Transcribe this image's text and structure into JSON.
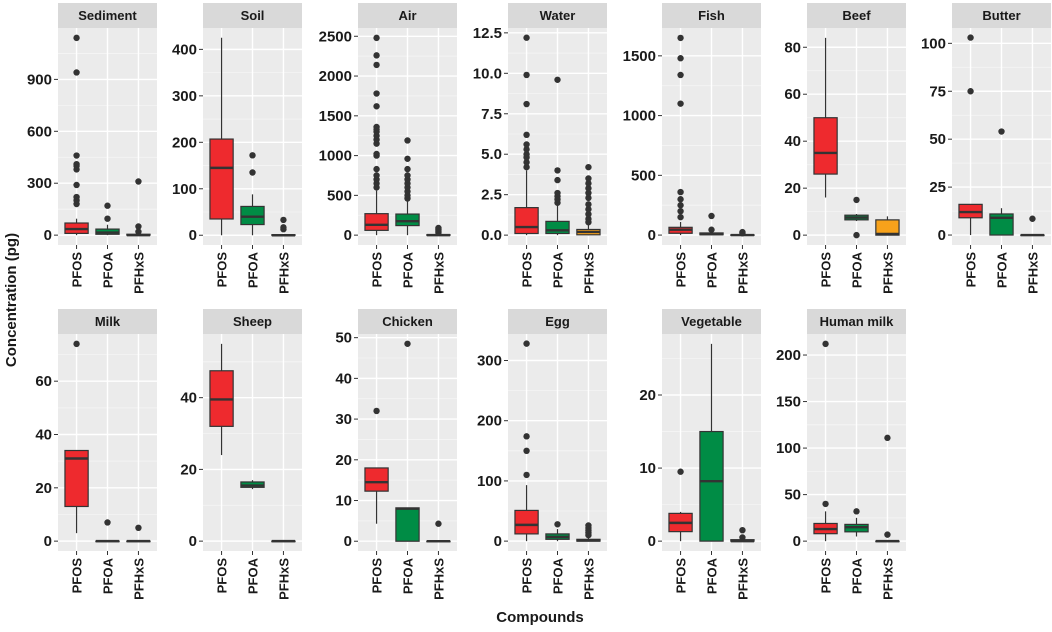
{
  "chart_data": {
    "type": "boxplot",
    "xlabel": "Compounds",
    "ylabel": "Concentration (pg)",
    "categories": [
      "PFOS",
      "PFOA",
      "PFHxS"
    ],
    "colors": {
      "PFOS": "#ee2a2e",
      "PFOA": "#008c45",
      "PFHxS": "#f7a21b"
    },
    "grid": true,
    "facets": [
      {
        "title": "Sediment",
        "ylim": [
          -57,
          1197
        ],
        "ticks": [
          0,
          300,
          600,
          900
        ],
        "tick_labels": [
          "0",
          "300",
          "600",
          "900"
        ],
        "boxes": [
          {
            "min": 0,
            "q1": 10,
            "median": 35,
            "q3": 70,
            "max": 95,
            "outliers": [
              180,
              200,
              220,
              290,
              380,
              400,
              410,
              460,
              940,
              1140
            ]
          },
          {
            "min": 0,
            "q1": 5,
            "median": 15,
            "q3": 35,
            "max": 60,
            "outliers": [
              95,
              170
            ]
          },
          {
            "min": 0,
            "q1": 0,
            "median": 0,
            "q3": 5,
            "max": 10,
            "outliers": [
              20,
              50,
              310
            ]
          }
        ]
      },
      {
        "title": "Soil",
        "ylim": [
          -21,
          446
        ],
        "ticks": [
          0,
          100,
          200,
          300,
          400
        ],
        "tick_labels": [
          "0",
          "100",
          "200",
          "300",
          "400"
        ],
        "boxes": [
          {
            "min": 0,
            "q1": 35,
            "median": 145,
            "q3": 207,
            "max": 425,
            "outliers": []
          },
          {
            "min": 0,
            "q1": 23,
            "median": 40,
            "q3": 62,
            "max": 88,
            "outliers": [
              135,
              172
            ]
          },
          {
            "min": 0,
            "q1": 0,
            "median": 0,
            "q3": 1,
            "max": 2,
            "outliers": [
              13,
              17,
              33
            ]
          }
        ]
      },
      {
        "title": "Air",
        "ylim": [
          -124,
          2604
        ],
        "ticks": [
          0,
          500,
          1000,
          1500,
          2000,
          2500
        ],
        "tick_labels": [
          "0",
          "500",
          "1000",
          "1500",
          "2000",
          "2500"
        ],
        "boxes": [
          {
            "min": 0,
            "q1": 60,
            "median": 130,
            "q3": 270,
            "max": 560,
            "outliers": [
              600,
              650,
              700,
              750,
              830,
              1000,
              1020,
              1150,
              1200,
              1250,
              1300,
              1330,
              1360,
              1620,
              1780,
              2140,
              2260,
              2480
            ]
          },
          {
            "min": 0,
            "q1": 120,
            "median": 175,
            "q3": 265,
            "max": 430,
            "outliers": [
              460,
              500,
              550,
              600,
              650,
              700,
              750,
              830,
              960,
              1190
            ]
          },
          {
            "min": 0,
            "q1": 0,
            "median": 0,
            "q3": 5,
            "max": 10,
            "outliers": [
              30,
              50,
              70,
              90
            ]
          }
        ]
      },
      {
        "title": "Water",
        "ylim": [
          -0.61,
          12.8
        ],
        "ticks": [
          0,
          2.5,
          5,
          7.5,
          10,
          12.5
        ],
        "tick_labels": [
          "0.0",
          "2.5",
          "5.0",
          "7.5",
          "10.0",
          "12.5"
        ],
        "boxes": [
          {
            "min": 0,
            "q1": 0.1,
            "median": 0.5,
            "q3": 1.7,
            "max": 4.0,
            "outliers": [
              4.2,
              4.5,
              4.8,
              5.0,
              5.3,
              5.6,
              6.2,
              8.1,
              9.9,
              12.2
            ]
          },
          {
            "min": 0,
            "q1": 0.1,
            "median": 0.3,
            "q3": 0.85,
            "max": 1.9,
            "outliers": [
              2.0,
              2.2,
              2.4,
              2.6,
              3.4,
              4.0,
              9.6
            ]
          },
          {
            "min": 0,
            "q1": 0.02,
            "median": 0.2,
            "q3": 0.35,
            "max": 0.7,
            "outliers": [
              0.8,
              1.0,
              1.3,
              1.6,
              1.9,
              2.3,
              2.6,
              2.9,
              3.2,
              3.5,
              4.2
            ]
          }
        ]
      },
      {
        "title": "Fish",
        "ylim": [
          -83,
          1733
        ],
        "ticks": [
          0,
          500,
          1000,
          1500
        ],
        "tick_labels": [
          "0",
          "500",
          "1000",
          "1500"
        ],
        "boxes": [
          {
            "min": 0,
            "q1": 15,
            "median": 45,
            "q3": 65,
            "max": 110,
            "outliers": [
              150,
              200,
              250,
              300,
              360,
              1100,
              1340,
              1480,
              1650
            ]
          },
          {
            "min": 0,
            "q1": 3,
            "median": 8,
            "q3": 18,
            "max": 30,
            "outliers": [
              45,
              160
            ]
          },
          {
            "min": 0,
            "q1": 0,
            "median": 0,
            "q3": 2,
            "max": 5,
            "outliers": [
              15,
              25
            ]
          }
        ]
      },
      {
        "title": "Beef",
        "ylim": [
          -4.2,
          88.2
        ],
        "ticks": [
          0,
          20,
          40,
          60,
          80
        ],
        "tick_labels": [
          "0",
          "20",
          "40",
          "60",
          "80"
        ],
        "boxes": [
          {
            "min": 16,
            "q1": 26,
            "median": 35,
            "q3": 50,
            "max": 84,
            "outliers": []
          },
          {
            "min": 6,
            "q1": 6.5,
            "median": 7.5,
            "q3": 8.5,
            "max": 9,
            "outliers": [
              0,
              15
            ]
          },
          {
            "min": 0,
            "q1": 0,
            "median": 0.5,
            "q3": 6.5,
            "max": 8,
            "outliers": []
          }
        ]
      },
      {
        "title": "Butter",
        "ylim": [
          -5.2,
          108
        ],
        "ticks": [
          0,
          25,
          50,
          75,
          100
        ],
        "tick_labels": [
          "0",
          "25",
          "50",
          "75",
          "100"
        ],
        "boxes": [
          {
            "min": 0,
            "q1": 9,
            "median": 12,
            "q3": 16,
            "max": 16,
            "outliers": [
              75,
              103
            ]
          },
          {
            "min": 0,
            "q1": 0,
            "median": 9,
            "q3": 11,
            "max": 14,
            "outliers": [
              54
            ]
          },
          {
            "min": 0,
            "q1": 0,
            "median": 0,
            "q3": 0,
            "max": 0,
            "outliers": [
              8.5
            ]
          }
        ]
      },
      {
        "title": "Milk",
        "ylim": [
          -3.7,
          77.7
        ],
        "ticks": [
          0,
          20,
          40,
          60
        ],
        "tick_labels": [
          "0",
          "20",
          "40",
          "60"
        ],
        "boxes": [
          {
            "min": 3,
            "q1": 13,
            "median": 31,
            "q3": 34,
            "max": 34,
            "outliers": [
              74
            ]
          },
          {
            "min": 0,
            "q1": 0,
            "median": 0,
            "q3": 0,
            "max": 0,
            "outliers": [
              7
            ]
          },
          {
            "min": 0,
            "q1": 0,
            "median": 0,
            "q3": 0,
            "max": 0,
            "outliers": [
              5
            ]
          }
        ]
      },
      {
        "title": "Sheep",
        "ylim": [
          -2.75,
          57.75
        ],
        "ticks": [
          0,
          20,
          40
        ],
        "tick_labels": [
          "0",
          "20",
          "40"
        ],
        "boxes": [
          {
            "min": 24,
            "q1": 32,
            "median": 39.5,
            "q3": 47.5,
            "max": 55,
            "outliers": []
          },
          {
            "min": 14.5,
            "q1": 15,
            "median": 15.5,
            "q3": 16.5,
            "max": 17,
            "outliers": []
          },
          {
            "min": 0,
            "q1": 0,
            "median": 0,
            "q3": 0,
            "max": 0,
            "outliers": []
          }
        ]
      },
      {
        "title": "Chicken",
        "ylim": [
          -2.4,
          50.9
        ],
        "ticks": [
          0,
          10,
          20,
          30,
          40,
          50
        ],
        "tick_labels": [
          "0",
          "10",
          "20",
          "30",
          "40",
          "50"
        ],
        "boxes": [
          {
            "min": 4.3,
            "q1": 12.3,
            "median": 14.5,
            "q3": 18,
            "max": 18,
            "outliers": [
              32
            ]
          },
          {
            "min": 0,
            "q1": 0,
            "median": 8,
            "q3": 8.2,
            "max": 8.2,
            "outliers": [
              48.5
            ]
          },
          {
            "min": 0,
            "q1": 0,
            "median": 0,
            "q3": 0,
            "max": 0,
            "outliers": [
              4.3
            ]
          }
        ]
      },
      {
        "title": "Egg",
        "ylim": [
          -16.4,
          344
        ],
        "ticks": [
          0,
          100,
          200,
          300
        ],
        "tick_labels": [
          "0",
          "100",
          "200",
          "300"
        ],
        "boxes": [
          {
            "min": 0,
            "q1": 12,
            "median": 27,
            "q3": 51,
            "max": 93,
            "outliers": [
              110,
              150,
              174,
              328
            ]
          },
          {
            "min": 0,
            "q1": 3,
            "median": 7,
            "q3": 12,
            "max": 20,
            "outliers": [
              28
            ]
          },
          {
            "min": 0,
            "q1": 0,
            "median": 1,
            "q3": 3,
            "max": 7,
            "outliers": [
              10,
              14,
              18,
              22,
              26
            ]
          }
        ]
      },
      {
        "title": "Vegetable",
        "ylim": [
          -1.35,
          28.35
        ],
        "ticks": [
          0,
          10,
          20
        ],
        "tick_labels": [
          "0",
          "10",
          "20"
        ],
        "boxes": [
          {
            "min": 0,
            "q1": 1.3,
            "median": 2.5,
            "q3": 3.8,
            "max": 4,
            "outliers": [
              9.5
            ]
          },
          {
            "min": 0,
            "q1": 0,
            "median": 8.2,
            "q3": 15,
            "max": 27,
            "outliers": []
          },
          {
            "min": 0,
            "q1": 0,
            "median": 0,
            "q3": 0.2,
            "max": 0.3,
            "outliers": [
              0.5,
              1.5
            ]
          }
        ]
      },
      {
        "title": "Human milk",
        "ylim": [
          -10.6,
          222.6
        ],
        "ticks": [
          0,
          50,
          100,
          150,
          200
        ],
        "tick_labels": [
          "0",
          "50",
          "100",
          "150",
          "200"
        ],
        "boxes": [
          {
            "min": 0,
            "q1": 8,
            "median": 13,
            "q3": 19,
            "max": 32,
            "outliers": [
              40,
              212
            ]
          },
          {
            "min": 5,
            "q1": 10,
            "median": 15,
            "q3": 18,
            "max": 25,
            "outliers": [
              32
            ]
          },
          {
            "min": 0,
            "q1": 0,
            "median": 0,
            "q3": 0,
            "max": 0,
            "outliers": [
              7,
              111
            ]
          }
        ]
      }
    ]
  }
}
